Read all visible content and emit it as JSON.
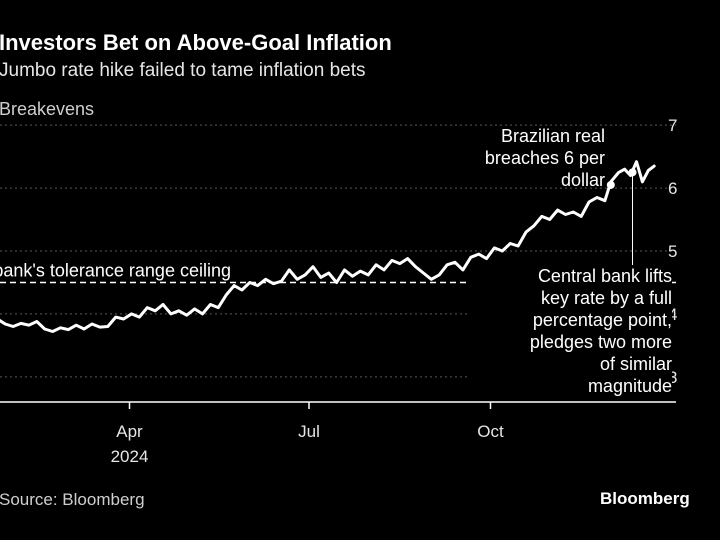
{
  "header": {
    "title": "Investors Bet on Above-Goal Inflation",
    "subtitle": "Jumbo rate hike failed to tame inflation bets",
    "unit_label": "Breakevens"
  },
  "footer": {
    "source": "Source: Bloomberg",
    "brand": "Bloomberg"
  },
  "chart_data": {
    "type": "line",
    "title": "Investors Bet on Above-Goal Inflation",
    "subtitle": "Jumbo rate hike failed to tame inflation bets",
    "ylabel": "Breakevens",
    "ylim": [
      2.6,
      7.4
    ],
    "yticks": [
      3,
      4,
      5,
      6,
      7
    ],
    "x_range": [
      "2024-01-01",
      "2024-12-31"
    ],
    "xticks": [
      {
        "date": "2024-04-01",
        "label": "Apr",
        "sublabel": "2024"
      },
      {
        "date": "2024-07-01",
        "label": "Jul",
        "sublabel": ""
      },
      {
        "date": "2024-10-01",
        "label": "Oct",
        "sublabel": ""
      }
    ],
    "grid": true,
    "reference_line": {
      "value": 4.5,
      "label": "Central bank's tolerance range ceiling"
    },
    "series": [
      {
        "name": "",
        "color": "#ffffff",
        "points": [
          [
            "2024-01-01",
            3.9
          ],
          [
            "2024-01-05",
            3.86
          ],
          [
            "2024-01-09",
            3.93
          ],
          [
            "2024-01-13",
            3.85
          ],
          [
            "2024-01-17",
            3.9
          ],
          [
            "2024-01-21",
            3.87
          ],
          [
            "2024-01-25",
            3.92
          ],
          [
            "2024-01-29",
            3.84
          ],
          [
            "2024-02-02",
            3.8
          ],
          [
            "2024-02-06",
            3.85
          ],
          [
            "2024-02-10",
            3.82
          ],
          [
            "2024-02-14",
            3.88
          ],
          [
            "2024-02-18",
            3.76
          ],
          [
            "2024-02-22",
            3.72
          ],
          [
            "2024-02-26",
            3.78
          ],
          [
            "2024-03-01",
            3.75
          ],
          [
            "2024-03-05",
            3.82
          ],
          [
            "2024-03-09",
            3.76
          ],
          [
            "2024-03-13",
            3.84
          ],
          [
            "2024-03-17",
            3.79
          ],
          [
            "2024-03-21",
            3.8
          ],
          [
            "2024-03-25",
            3.95
          ],
          [
            "2024-03-29",
            3.92
          ],
          [
            "2024-04-02",
            4.0
          ],
          [
            "2024-04-06",
            3.95
          ],
          [
            "2024-04-10",
            4.1
          ],
          [
            "2024-04-14",
            4.05
          ],
          [
            "2024-04-18",
            4.15
          ],
          [
            "2024-04-22",
            4.0
          ],
          [
            "2024-04-26",
            4.05
          ],
          [
            "2024-04-30",
            3.98
          ],
          [
            "2024-05-04",
            4.08
          ],
          [
            "2024-05-08",
            4.0
          ],
          [
            "2024-05-12",
            4.15
          ],
          [
            "2024-05-16",
            4.1
          ],
          [
            "2024-05-20",
            4.3
          ],
          [
            "2024-05-24",
            4.45
          ],
          [
            "2024-05-28",
            4.38
          ],
          [
            "2024-06-01",
            4.5
          ],
          [
            "2024-06-05",
            4.45
          ],
          [
            "2024-06-09",
            4.55
          ],
          [
            "2024-06-13",
            4.48
          ],
          [
            "2024-06-17",
            4.52
          ],
          [
            "2024-06-21",
            4.7
          ],
          [
            "2024-06-25",
            4.55
          ],
          [
            "2024-06-29",
            4.62
          ],
          [
            "2024-07-03",
            4.75
          ],
          [
            "2024-07-07",
            4.58
          ],
          [
            "2024-07-11",
            4.65
          ],
          [
            "2024-07-15",
            4.5
          ],
          [
            "2024-07-19",
            4.7
          ],
          [
            "2024-07-23",
            4.6
          ],
          [
            "2024-07-27",
            4.68
          ],
          [
            "2024-07-31",
            4.62
          ],
          [
            "2024-08-04",
            4.78
          ],
          [
            "2024-08-08",
            4.7
          ],
          [
            "2024-08-12",
            4.85
          ],
          [
            "2024-08-16",
            4.8
          ],
          [
            "2024-08-20",
            4.88
          ],
          [
            "2024-08-24",
            4.75
          ],
          [
            "2024-08-28",
            4.65
          ],
          [
            "2024-09-01",
            4.55
          ],
          [
            "2024-09-05",
            4.62
          ],
          [
            "2024-09-09",
            4.78
          ],
          [
            "2024-09-13",
            4.82
          ],
          [
            "2024-09-17",
            4.7
          ],
          [
            "2024-09-21",
            4.9
          ],
          [
            "2024-09-25",
            4.95
          ],
          [
            "2024-09-29",
            4.88
          ],
          [
            "2024-10-03",
            5.05
          ],
          [
            "2024-10-07",
            5.0
          ],
          [
            "2024-10-11",
            5.12
          ],
          [
            "2024-10-15",
            5.08
          ],
          [
            "2024-10-19",
            5.3
          ],
          [
            "2024-10-23",
            5.4
          ],
          [
            "2024-10-27",
            5.55
          ],
          [
            "2024-10-31",
            5.5
          ],
          [
            "2024-11-04",
            5.65
          ],
          [
            "2024-11-08",
            5.58
          ],
          [
            "2024-11-12",
            5.62
          ],
          [
            "2024-11-16",
            5.55
          ],
          [
            "2024-11-20",
            5.78
          ],
          [
            "2024-11-24",
            5.85
          ],
          [
            "2024-11-28",
            5.8
          ],
          [
            "2024-12-01",
            6.1
          ],
          [
            "2024-12-05",
            6.25
          ],
          [
            "2024-12-08",
            6.3
          ],
          [
            "2024-12-11",
            6.2
          ],
          [
            "2024-12-14",
            6.42
          ],
          [
            "2024-12-17",
            6.1
          ],
          [
            "2024-12-20",
            6.28
          ],
          [
            "2024-12-23",
            6.35
          ]
        ]
      }
    ],
    "annotations": [
      {
        "id": "real",
        "date": "2024-12-01",
        "value": 6.05,
        "text": "Brazilian real\nbreaches 6 per\ndollar"
      },
      {
        "id": "bank",
        "date": "2024-12-12",
        "value": 6.25,
        "text": "Central bank lifts\nkey rate by a full\npercentage point,\npledges two more\nof similar\nmagnitude"
      }
    ]
  }
}
